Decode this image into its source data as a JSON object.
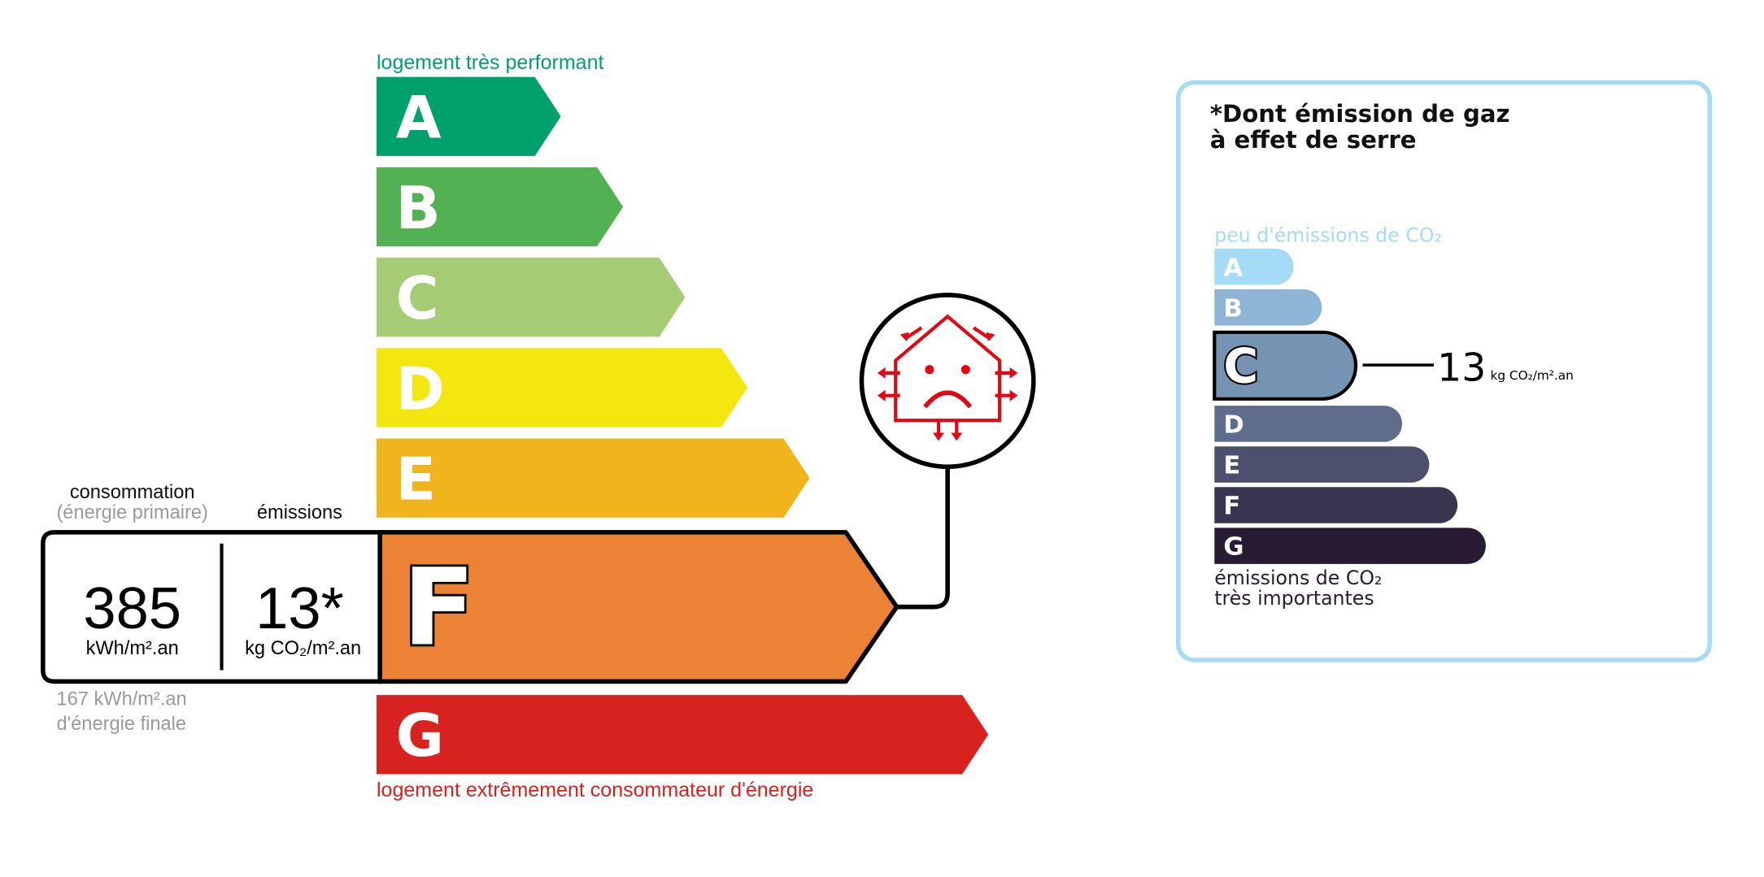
{
  "energy": {
    "top_label": "logement très performant",
    "bottom_label": "logement extrêmement consommateur d'énergie",
    "classes": [
      {
        "letter": "A",
        "color": "#00a06d"
      },
      {
        "letter": "B",
        "color": "#52b153"
      },
      {
        "letter": "C",
        "color": "#a5cc74"
      },
      {
        "letter": "D",
        "color": "#f4e70f"
      },
      {
        "letter": "E",
        "color": "#f0b41c"
      },
      {
        "letter": "F",
        "color": "#eb8235"
      },
      {
        "letter": "G",
        "color": "#d7221f"
      }
    ],
    "current_class": "F",
    "consumption_label": "consommation",
    "consumption_sublabel": "(énergie primaire)",
    "emissions_label": "émissions",
    "consumption_value": "385",
    "consumption_unit": "kWh/m².an",
    "emissions_value": "13*",
    "emissions_unit": "kg CO₂/m².an",
    "final_energy_value": "167 kWh/m².an",
    "final_energy_label": "d'énergie finale",
    "icon": "house-heat-loss-sad-icon"
  },
  "ghg": {
    "title_line1": "*Dont émission de gaz",
    "title_line2": "à effet de serre",
    "top_label": "peu d'émissions de CO₂",
    "bottom_label_line1": "émissions de CO₂",
    "bottom_label_line2": "très importantes",
    "classes": [
      {
        "letter": "A",
        "color": "#a4dbf6"
      },
      {
        "letter": "B",
        "color": "#8eb5d5"
      },
      {
        "letter": "C",
        "color": "#7594b3"
      },
      {
        "letter": "D",
        "color": "#5f6d8d"
      },
      {
        "letter": "E",
        "color": "#4c4f6e"
      },
      {
        "letter": "F",
        "color": "#393551"
      },
      {
        "letter": "G",
        "color": "#281b34"
      }
    ],
    "current_class": "C",
    "value": "13",
    "unit": "kg CO₂/m².an",
    "border_color": "#a6dbf5"
  }
}
